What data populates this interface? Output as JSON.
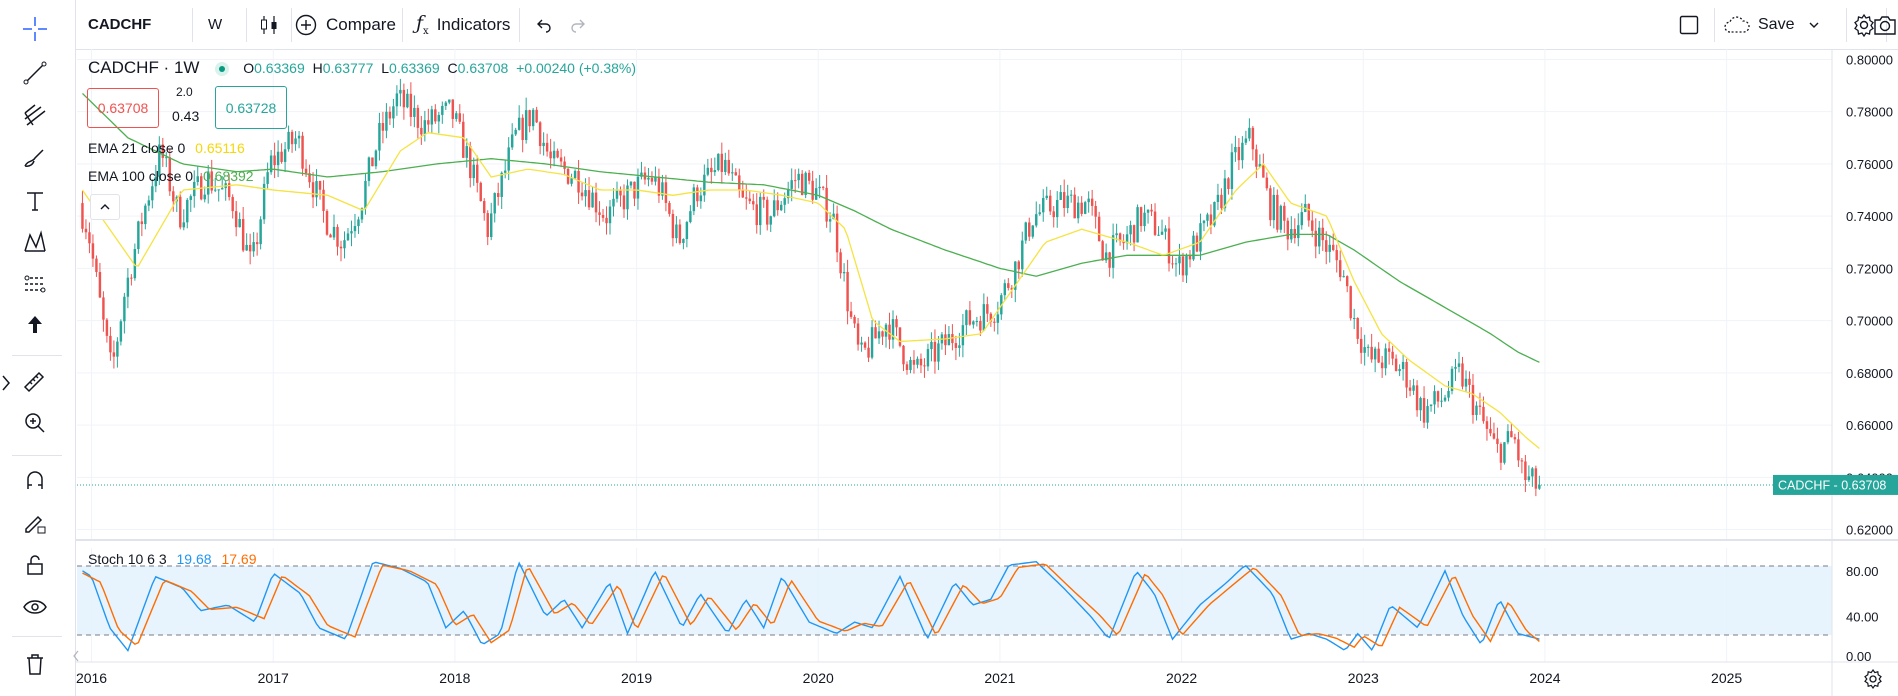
{
  "toolbar": {
    "symbol": "CADCHF",
    "interval": "W",
    "compare_label": "Compare",
    "indicators_label": "Indicators",
    "save_label": "Save"
  },
  "legend": {
    "symbol_title": "CADCHF · 1W",
    "open_label": "O",
    "open": "0.63369",
    "high_label": "H",
    "high": "0.63777",
    "low_label": "L",
    "low": "0.63369",
    "close_label": "C",
    "close": "0.63708",
    "change": "+0.00240 (+0.38%)",
    "sell_price": "0.63708",
    "spread_top": "2.0",
    "spread": "0.43",
    "buy_price": "0.63728",
    "ema21_label": "EMA 21 close 0",
    "ema21_value": "0.65116",
    "ema100_label": "EMA 100 close 0",
    "ema100_value": "0.68392",
    "stoch_label": "Stoch 10 6 3",
    "stoch_k": "19.68",
    "stoch_d": "17.69",
    "price_tag": "CADCHF - 0.63708"
  },
  "colors": {
    "up": "#26a69a",
    "down": "#ef5350",
    "ema21": "#f5e342",
    "ema100": "#4caf50",
    "stoch_k": "#2196f3",
    "stoch_d": "#ff6d00",
    "band": "#e3f2fd",
    "tag": "#26a69a"
  },
  "chart_data": {
    "type": "candlestick",
    "title": "CADCHF · 1W",
    "x_ticks": [
      "2016",
      "2017",
      "2018",
      "2019",
      "2020",
      "2021",
      "2022",
      "2023",
      "2024",
      "2025"
    ],
    "y_ticks": [
      "0.80000",
      "0.78000",
      "0.76000",
      "0.74000",
      "0.72000",
      "0.70000",
      "0.68000",
      "0.66000",
      "0.64000",
      "0.62000"
    ],
    "ylim": [
      0.616,
      0.804
    ],
    "xlim": [
      2015.92,
      2025.58
    ],
    "last_close": 0.63708,
    "series": [
      {
        "name": "CADCHF",
        "type": "candles",
        "path": [
          [
            2015.95,
            0.745
          ],
          [
            2016.0,
            0.735
          ],
          [
            2016.08,
            0.7
          ],
          [
            2016.13,
            0.68
          ],
          [
            2016.2,
            0.71
          ],
          [
            2016.3,
            0.74
          ],
          [
            2016.4,
            0.765
          ],
          [
            2016.5,
            0.74
          ],
          [
            2016.65,
            0.755
          ],
          [
            2016.8,
            0.745
          ],
          [
            2016.9,
            0.72
          ],
          [
            2017.0,
            0.76
          ],
          [
            2017.15,
            0.77
          ],
          [
            2017.3,
            0.74
          ],
          [
            2017.4,
            0.73
          ],
          [
            2017.5,
            0.745
          ],
          [
            2017.6,
            0.77
          ],
          [
            2017.7,
            0.785
          ],
          [
            2017.85,
            0.775
          ],
          [
            2018.0,
            0.78
          ],
          [
            2018.1,
            0.76
          ],
          [
            2018.2,
            0.735
          ],
          [
            2018.35,
            0.77
          ],
          [
            2018.45,
            0.78
          ],
          [
            2018.55,
            0.76
          ],
          [
            2018.7,
            0.755
          ],
          [
            2018.85,
            0.74
          ],
          [
            2019.0,
            0.75
          ],
          [
            2019.1,
            0.755
          ],
          [
            2019.15,
            0.75
          ],
          [
            2019.25,
            0.73
          ],
          [
            2019.35,
            0.75
          ],
          [
            2019.5,
            0.76
          ],
          [
            2019.6,
            0.745
          ],
          [
            2019.75,
            0.74
          ],
          [
            2019.9,
            0.755
          ],
          [
            2020.0,
            0.75
          ],
          [
            2020.1,
            0.74
          ],
          [
            2020.2,
            0.7
          ],
          [
            2020.25,
            0.685
          ],
          [
            2020.4,
            0.7
          ],
          [
            2020.55,
            0.68
          ],
          [
            2020.7,
            0.69
          ],
          [
            2020.85,
            0.7
          ],
          [
            2021.0,
            0.705
          ],
          [
            2021.1,
            0.72
          ],
          [
            2021.2,
            0.74
          ],
          [
            2021.35,
            0.745
          ],
          [
            2021.5,
            0.745
          ],
          [
            2021.6,
            0.725
          ],
          [
            2021.7,
            0.73
          ],
          [
            2021.8,
            0.74
          ],
          [
            2021.9,
            0.735
          ],
          [
            2022.0,
            0.72
          ],
          [
            2022.1,
            0.73
          ],
          [
            2022.2,
            0.74
          ],
          [
            2022.3,
            0.76
          ],
          [
            2022.4,
            0.77
          ],
          [
            2022.5,
            0.745
          ],
          [
            2022.6,
            0.735
          ],
          [
            2022.7,
            0.74
          ],
          [
            2022.8,
            0.73
          ],
          [
            2022.9,
            0.72
          ],
          [
            2022.97,
            0.7
          ],
          [
            2023.05,
            0.685
          ],
          [
            2023.15,
            0.685
          ],
          [
            2023.25,
            0.68
          ],
          [
            2023.35,
            0.665
          ],
          [
            2023.45,
            0.67
          ],
          [
            2023.55,
            0.68
          ],
          [
            2023.65,
            0.665
          ],
          [
            2023.75,
            0.65
          ],
          [
            2023.85,
            0.655
          ],
          [
            2023.9,
            0.64
          ],
          [
            2023.97,
            0.637
          ]
        ]
      },
      {
        "name": "EMA 21 close 0",
        "type": "line",
        "path": [
          [
            2015.95,
            0.75
          ],
          [
            2016.1,
            0.735
          ],
          [
            2016.25,
            0.72
          ],
          [
            2016.5,
            0.75
          ],
          [
            2016.8,
            0.752
          ],
          [
            2017.0,
            0.75
          ],
          [
            2017.3,
            0.748
          ],
          [
            2017.5,
            0.742
          ],
          [
            2017.7,
            0.765
          ],
          [
            2017.85,
            0.772
          ],
          [
            2018.05,
            0.77
          ],
          [
            2018.2,
            0.755
          ],
          [
            2018.4,
            0.758
          ],
          [
            2018.6,
            0.756
          ],
          [
            2018.8,
            0.75
          ],
          [
            2019.0,
            0.75
          ],
          [
            2019.2,
            0.748
          ],
          [
            2019.4,
            0.75
          ],
          [
            2019.6,
            0.75
          ],
          [
            2019.8,
            0.748
          ],
          [
            2020.0,
            0.745
          ],
          [
            2020.15,
            0.735
          ],
          [
            2020.3,
            0.7
          ],
          [
            2020.45,
            0.692
          ],
          [
            2020.7,
            0.693
          ],
          [
            2020.9,
            0.695
          ],
          [
            2021.1,
            0.715
          ],
          [
            2021.25,
            0.73
          ],
          [
            2021.45,
            0.735
          ],
          [
            2021.7,
            0.73
          ],
          [
            2021.9,
            0.725
          ],
          [
            2022.1,
            0.73
          ],
          [
            2022.3,
            0.75
          ],
          [
            2022.45,
            0.76
          ],
          [
            2022.6,
            0.745
          ],
          [
            2022.8,
            0.74
          ],
          [
            2022.95,
            0.715
          ],
          [
            2023.1,
            0.695
          ],
          [
            2023.25,
            0.685
          ],
          [
            2023.45,
            0.675
          ],
          [
            2023.6,
            0.672
          ],
          [
            2023.75,
            0.665
          ],
          [
            2023.9,
            0.655
          ],
          [
            2023.97,
            0.651
          ]
        ]
      },
      {
        "name": "EMA 100 close 0",
        "type": "line",
        "path": [
          [
            2015.95,
            0.787
          ],
          [
            2016.2,
            0.77
          ],
          [
            2016.5,
            0.76
          ],
          [
            2016.8,
            0.757
          ],
          [
            2017.0,
            0.758
          ],
          [
            2017.3,
            0.755
          ],
          [
            2017.6,
            0.757
          ],
          [
            2017.9,
            0.76
          ],
          [
            2018.2,
            0.762
          ],
          [
            2018.5,
            0.76
          ],
          [
            2018.8,
            0.757
          ],
          [
            2019.1,
            0.755
          ],
          [
            2019.4,
            0.753
          ],
          [
            2019.7,
            0.752
          ],
          [
            2020.0,
            0.748
          ],
          [
            2020.2,
            0.742
          ],
          [
            2020.4,
            0.735
          ],
          [
            2020.7,
            0.727
          ],
          [
            2021.0,
            0.72
          ],
          [
            2021.2,
            0.717
          ],
          [
            2021.45,
            0.722
          ],
          [
            2021.7,
            0.725
          ],
          [
            2021.9,
            0.725
          ],
          [
            2022.1,
            0.725
          ],
          [
            2022.35,
            0.73
          ],
          [
            2022.6,
            0.733
          ],
          [
            2022.8,
            0.733
          ],
          [
            2022.95,
            0.727
          ],
          [
            2023.2,
            0.715
          ],
          [
            2023.5,
            0.703
          ],
          [
            2023.7,
            0.695
          ],
          [
            2023.85,
            0.688
          ],
          [
            2023.97,
            0.684
          ]
        ]
      },
      {
        "name": "Stoch %K",
        "path": [
          [
            2015.95,
            80
          ],
          [
            2016.0,
            75
          ],
          [
            2016.1,
            30
          ],
          [
            2016.2,
            10
          ],
          [
            2016.35,
            75
          ],
          [
            2016.5,
            65
          ],
          [
            2016.6,
            45
          ],
          [
            2016.75,
            50
          ],
          [
            2016.9,
            35
          ],
          [
            2017.0,
            78
          ],
          [
            2017.15,
            60
          ],
          [
            2017.25,
            30
          ],
          [
            2017.4,
            20
          ],
          [
            2017.55,
            88
          ],
          [
            2017.7,
            82
          ],
          [
            2017.85,
            70
          ],
          [
            2017.95,
            30
          ],
          [
            2018.05,
            45
          ],
          [
            2018.15,
            15
          ],
          [
            2018.25,
            25
          ],
          [
            2018.35,
            88
          ],
          [
            2018.5,
            40
          ],
          [
            2018.6,
            55
          ],
          [
            2018.7,
            30
          ],
          [
            2018.85,
            70
          ],
          [
            2018.95,
            25
          ],
          [
            2019.1,
            80
          ],
          [
            2019.25,
            30
          ],
          [
            2019.35,
            60
          ],
          [
            2019.5,
            25
          ],
          [
            2019.6,
            55
          ],
          [
            2019.7,
            30
          ],
          [
            2019.8,
            75
          ],
          [
            2019.95,
            35
          ],
          [
            2020.1,
            25
          ],
          [
            2020.2,
            35
          ],
          [
            2020.3,
            30
          ],
          [
            2020.45,
            75
          ],
          [
            2020.6,
            20
          ],
          [
            2020.75,
            70
          ],
          [
            2020.85,
            50
          ],
          [
            2020.95,
            55
          ],
          [
            2021.05,
            85
          ],
          [
            2021.2,
            88
          ],
          [
            2021.35,
            65
          ],
          [
            2021.5,
            40
          ],
          [
            2021.6,
            20
          ],
          [
            2021.75,
            80
          ],
          [
            2021.85,
            60
          ],
          [
            2021.95,
            20
          ],
          [
            2022.1,
            50
          ],
          [
            2022.25,
            70
          ],
          [
            2022.35,
            85
          ],
          [
            2022.5,
            60
          ],
          [
            2022.6,
            20
          ],
          [
            2022.7,
            25
          ],
          [
            2022.8,
            20
          ],
          [
            2022.9,
            10
          ],
          [
            2022.97,
            25
          ],
          [
            2023.05,
            10
          ],
          [
            2023.15,
            50
          ],
          [
            2023.3,
            30
          ],
          [
            2023.45,
            80
          ],
          [
            2023.55,
            40
          ],
          [
            2023.65,
            15
          ],
          [
            2023.75,
            55
          ],
          [
            2023.85,
            25
          ],
          [
            2023.97,
            20
          ]
        ]
      },
      {
        "name": "Stoch %D",
        "path": [
          [
            2015.95,
            78
          ],
          [
            2016.05,
            70
          ],
          [
            2016.15,
            28
          ],
          [
            2016.25,
            14
          ],
          [
            2016.4,
            72
          ],
          [
            2016.55,
            62
          ],
          [
            2016.65,
            46
          ],
          [
            2016.8,
            48
          ],
          [
            2016.95,
            38
          ],
          [
            2017.05,
            76
          ],
          [
            2017.2,
            58
          ],
          [
            2017.3,
            32
          ],
          [
            2017.45,
            22
          ],
          [
            2017.6,
            85
          ],
          [
            2017.75,
            80
          ],
          [
            2017.9,
            68
          ],
          [
            2018.0,
            32
          ],
          [
            2018.1,
            42
          ],
          [
            2018.2,
            17
          ],
          [
            2018.3,
            28
          ],
          [
            2018.4,
            85
          ],
          [
            2018.55,
            42
          ],
          [
            2018.65,
            52
          ],
          [
            2018.75,
            32
          ],
          [
            2018.9,
            68
          ],
          [
            2019.0,
            28
          ],
          [
            2019.15,
            78
          ],
          [
            2019.3,
            32
          ],
          [
            2019.4,
            58
          ],
          [
            2019.55,
            28
          ],
          [
            2019.65,
            52
          ],
          [
            2019.75,
            32
          ],
          [
            2019.85,
            72
          ],
          [
            2020.0,
            36
          ],
          [
            2020.15,
            27
          ],
          [
            2020.25,
            34
          ],
          [
            2020.35,
            31
          ],
          [
            2020.5,
            72
          ],
          [
            2020.65,
            23
          ],
          [
            2020.8,
            68
          ],
          [
            2020.9,
            51
          ],
          [
            2021.0,
            56
          ],
          [
            2021.1,
            83
          ],
          [
            2021.25,
            86
          ],
          [
            2021.4,
            63
          ],
          [
            2021.55,
            41
          ],
          [
            2021.65,
            23
          ],
          [
            2021.8,
            78
          ],
          [
            2021.9,
            58
          ],
          [
            2022.0,
            23
          ],
          [
            2022.15,
            50
          ],
          [
            2022.3,
            70
          ],
          [
            2022.4,
            83
          ],
          [
            2022.55,
            58
          ],
          [
            2022.65,
            23
          ],
          [
            2022.75,
            25
          ],
          [
            2022.85,
            21
          ],
          [
            2022.95,
            13
          ],
          [
            2023.0,
            23
          ],
          [
            2023.1,
            13
          ],
          [
            2023.2,
            48
          ],
          [
            2023.35,
            31
          ],
          [
            2023.5,
            77
          ],
          [
            2023.6,
            41
          ],
          [
            2023.7,
            18
          ],
          [
            2023.8,
            53
          ],
          [
            2023.9,
            27
          ],
          [
            2023.97,
            18
          ]
        ]
      }
    ],
    "stoch_y_ticks": [
      "80.00",
      "40.00",
      "0.00"
    ],
    "stoch_ylim": [
      0,
      100
    ],
    "stoch_bands": [
      20,
      80
    ]
  }
}
